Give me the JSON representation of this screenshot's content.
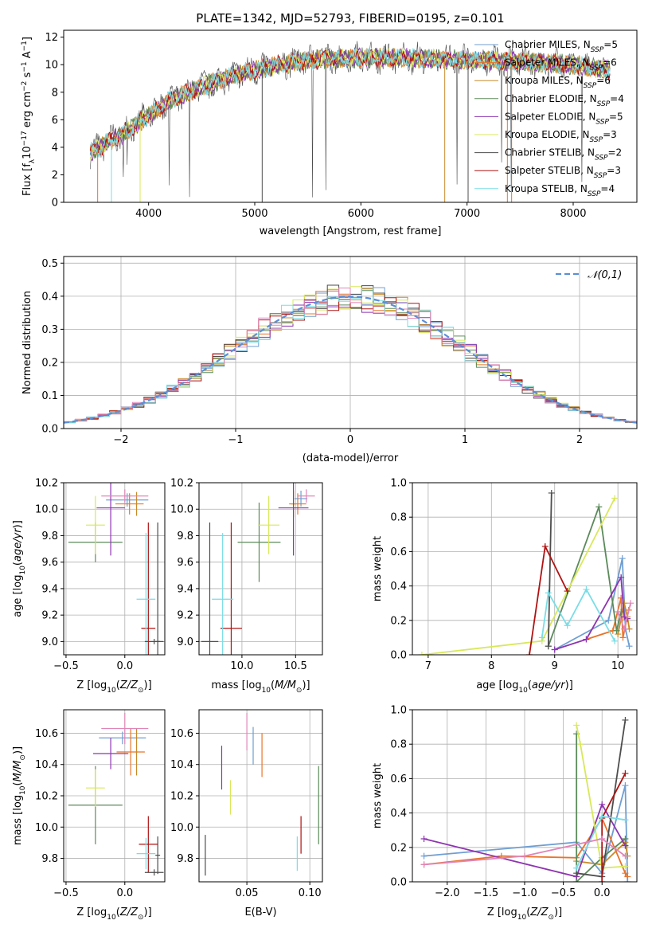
{
  "figure_title": "PLATE=1342, MJD=52793, FIBERID=0195, z=0.101",
  "series_colors": [
    "#6f9ed2",
    "#e8742a",
    "#c88a2a",
    "#5b8a5a",
    "#8e34b0",
    "#d8e85a",
    "#4d4d4d",
    "#b01212",
    "#79dde6",
    "#e085b8"
  ],
  "chart_data": [
    {
      "id": "spectrum",
      "type": "line",
      "xlabel": "wavelength [Angstrom, rest frame]",
      "ylabel": "Flux [fλ10⁻¹⁷ erg cm⁻² s⁻¹ A⁻¹]",
      "xlim": [
        3200,
        8600
      ],
      "ylim": [
        0,
        12.5
      ],
      "xticks": [
        4000,
        5000,
        6000,
        7000,
        8000
      ],
      "yticks": [
        0,
        2,
        4,
        6,
        8,
        10,
        12
      ],
      "grid": false,
      "legend": "top-right",
      "legend_entries": [
        "Chabrier MILES, N_SSP=5",
        "Salpeter MILES, N_SSP=6",
        "Kroupa MILES, N_SSP=6",
        "Chabrier ELODIE, N_SSP=4",
        "Salpeter ELODIE, N_SSP=5",
        "Kroupa ELODIE, N_SSP=3",
        "Chabrier STELIB, N_SSP=2",
        "Salpeter STELIB, N_SSP=3",
        "Kroupa STELIB, N_SSP=4"
      ],
      "continuum": {
        "x": [
          3450,
          3600,
          3800,
          4000,
          4200,
          4500,
          4800,
          5000,
          5300,
          5600,
          6000,
          6400,
          6800,
          7200,
          7600,
          8000,
          8350
        ],
        "y": [
          3.6,
          4.3,
          5.2,
          6.3,
          7.4,
          8.4,
          9.2,
          9.6,
          10.1,
          10.4,
          10.5,
          10.5,
          10.4,
          10.3,
          10.2,
          10.0,
          9.6
        ]
      }
    },
    {
      "id": "residuals",
      "type": "histogram",
      "xlabel": "(data-model)/error",
      "ylabel": "Normed distribution",
      "xlim": [
        -2.5,
        2.5
      ],
      "ylim": [
        0,
        0.52
      ],
      "xticks": [
        -2,
        -1,
        0,
        1,
        2
      ],
      "yticks": [
        0.0,
        0.1,
        0.2,
        0.3,
        0.4,
        0.5
      ],
      "grid": true,
      "legend": "top-right",
      "legend_entries": [
        "𝒩(0,1)"
      ],
      "bin_width": 0.1,
      "bin_start": -2.5
    },
    {
      "id": "age-vs-Z",
      "type": "errorbar",
      "xlabel": "Z [log10(Z/Z⊙)]",
      "ylabel": "age  [log10(age/yr)]",
      "xlim": [
        -0.52,
        0.34
      ],
      "ylim": [
        8.9,
        10.2
      ],
      "xticks": [
        -0.5,
        0.0
      ],
      "xticklabels": [
        "−0.5",
        "0.0"
      ],
      "yticks": [
        9.0,
        9.2,
        9.4,
        9.6,
        9.8,
        10.0,
        10.2
      ],
      "grid": true,
      "points": [
        {
          "x": 0.02,
          "y": 10.07,
          "xe": 0.18,
          "ye": 0.05,
          "c": 0
        },
        {
          "x": 0.04,
          "y": 10.04,
          "xe": 0.12,
          "ye": 0.08,
          "c": 1
        },
        {
          "x": 0.1,
          "y": 10.04,
          "xe": 0.01,
          "ye": 0.09,
          "c": 2
        },
        {
          "x": -0.25,
          "y": 9.75,
          "xe": 0.23,
          "ye": 0.15,
          "c": 3
        },
        {
          "x": -0.12,
          "y": 10.01,
          "xe": 0.12,
          "ye": 0.36,
          "c": 4
        },
        {
          "x": -0.25,
          "y": 9.88,
          "xe": 0.08,
          "ye": 0.22,
          "c": 5
        },
        {
          "x": 0.28,
          "y": 9.0,
          "xe": 0.02,
          "ye": 0.9,
          "c": 6
        },
        {
          "x": 0.2,
          "y": 9.1,
          "xe": 0.06,
          "ye": 0.8,
          "c": 7
        },
        {
          "x": 0.18,
          "y": 9.32,
          "xe": 0.08,
          "ye": 0.5,
          "c": 8
        },
        {
          "x": 0.0,
          "y": 10.1,
          "xe": 0.2,
          "ye": 0.05,
          "c": 9
        },
        {
          "x": 0.25,
          "y": 9.0,
          "xe": 0.08,
          "ye": 0.02,
          "c": 6
        }
      ]
    },
    {
      "id": "age-vs-mass",
      "type": "errorbar",
      "xlabel": "mass [log10(M/M⊙)]",
      "ylabel": "",
      "xlim": [
        9.6,
        10.75
      ],
      "ylim": [
        8.9,
        10.2
      ],
      "xticks": [
        10.0,
        10.5
      ],
      "yticks": [
        9.0,
        9.2,
        9.4,
        9.6,
        9.8,
        10.0,
        10.2
      ],
      "grid": true,
      "points": [
        {
          "x": 10.55,
          "y": 10.08,
          "xe": 0.06,
          "ye": 0.06,
          "c": 0
        },
        {
          "x": 10.52,
          "y": 10.04,
          "xe": 0.08,
          "ye": 0.08,
          "c": 1
        },
        {
          "x": 10.48,
          "y": 10.04,
          "xe": 0.02,
          "ye": 0.1,
          "c": 2
        },
        {
          "x": 10.16,
          "y": 9.75,
          "xe": 0.2,
          "ye": 0.3,
          "c": 3
        },
        {
          "x": 10.48,
          "y": 10.01,
          "xe": 0.14,
          "ye": 0.36,
          "c": 4
        },
        {
          "x": 10.25,
          "y": 9.88,
          "xe": 0.1,
          "ye": 0.22,
          "c": 5
        },
        {
          "x": 9.7,
          "y": 9.0,
          "xe": 0.08,
          "ye": 0.9,
          "c": 6
        },
        {
          "x": 9.9,
          "y": 9.1,
          "xe": 0.1,
          "ye": 0.8,
          "c": 7
        },
        {
          "x": 9.82,
          "y": 9.32,
          "xe": 0.1,
          "ye": 0.5,
          "c": 8
        },
        {
          "x": 10.6,
          "y": 10.1,
          "xe": 0.08,
          "ye": 0.05,
          "c": 9
        }
      ]
    },
    {
      "id": "weight-vs-age",
      "type": "line",
      "xlabel": "age  [log10(age/yr)]",
      "ylabel": "mass weight",
      "xlim": [
        6.75,
        10.3
      ],
      "ylim": [
        0,
        1.0
      ],
      "xticks": [
        7,
        8,
        9,
        10
      ],
      "yticks": [
        0.0,
        0.2,
        0.4,
        0.6,
        0.8,
        1.0
      ],
      "grid": true,
      "series": [
        {
          "c": 0,
          "x": [
            9.0,
            9.85,
            10.07,
            10.12,
            10.18
          ],
          "y": [
            0.03,
            0.2,
            0.56,
            0.15,
            0.05
          ]
        },
        {
          "c": 1,
          "x": [
            9.5,
            9.92,
            10.05,
            10.08,
            10.17
          ],
          "y": [
            0.09,
            0.14,
            0.33,
            0.1,
            0.26
          ]
        },
        {
          "c": 2,
          "x": [
            10.0,
            10.1,
            10.15,
            10.18
          ],
          "y": [
            0.12,
            0.3,
            0.22,
            0.15
          ]
        },
        {
          "c": 3,
          "x": [
            8.9,
            9.7,
            9.98,
            10.05
          ],
          "y": [
            0.05,
            0.86,
            0.14,
            0.25
          ]
        },
        {
          "c": 4,
          "x": [
            9.0,
            9.5,
            10.05,
            10.1,
            10.15
          ],
          "y": [
            0.03,
            0.09,
            0.45,
            0.22,
            0.21
          ]
        },
        {
          "c": 5,
          "x": [
            6.9,
            8.8,
            9.95
          ],
          "y": [
            0.0,
            0.08,
            0.91
          ]
        },
        {
          "c": 6,
          "x": [
            8.9,
            8.95
          ],
          "y": [
            0.05,
            0.94
          ]
        },
        {
          "c": 7,
          "x": [
            8.6,
            8.85,
            9.2
          ],
          "y": [
            0.0,
            0.63,
            0.37
          ]
        },
        {
          "c": 8,
          "x": [
            8.8,
            8.9,
            9.2,
            9.5,
            9.95
          ],
          "y": [
            0.1,
            0.36,
            0.17,
            0.38,
            0.08
          ]
        },
        {
          "c": 9,
          "x": [
            10.0,
            10.1,
            10.2
          ],
          "y": [
            0.25,
            0.15,
            0.3
          ]
        }
      ]
    },
    {
      "id": "mass-vs-Z",
      "type": "errorbar",
      "xlabel": "Z [log10(Z/Z⊙)]",
      "ylabel": "mass [log10(M/M⊙)]",
      "xlim": [
        -0.52,
        0.34
      ],
      "ylim": [
        9.65,
        10.75
      ],
      "xticks": [
        -0.5,
        0.0
      ],
      "xticklabels": [
        "−0.5",
        "0.0"
      ],
      "yticks": [
        9.8,
        10.0,
        10.2,
        10.4,
        10.6
      ],
      "grid": true,
      "points": [
        {
          "x": -0.02,
          "y": 10.57,
          "xe": 0.2,
          "ye": 0.04,
          "c": 0
        },
        {
          "x": 0.05,
          "y": 10.48,
          "xe": 0.12,
          "ye": 0.15,
          "c": 1
        },
        {
          "x": 0.1,
          "y": 10.48,
          "xe": 0.01,
          "ye": 0.15,
          "c": 2
        },
        {
          "x": -0.25,
          "y": 10.14,
          "xe": 0.23,
          "ye": 0.25,
          "c": 3
        },
        {
          "x": -0.12,
          "y": 10.47,
          "xe": 0.15,
          "ye": 0.1,
          "c": 4
        },
        {
          "x": -0.25,
          "y": 10.25,
          "xe": 0.08,
          "ye": 0.12,
          "c": 5
        },
        {
          "x": 0.28,
          "y": 9.82,
          "xe": 0.02,
          "ye": 0.12,
          "c": 6
        },
        {
          "x": 0.2,
          "y": 9.89,
          "xe": 0.08,
          "ye": 0.18,
          "c": 7
        },
        {
          "x": 0.18,
          "y": 9.83,
          "xe": 0.08,
          "ye": 0.1,
          "c": 8
        },
        {
          "x": 0.0,
          "y": 10.63,
          "xe": 0.2,
          "ye": 0.1,
          "c": 9
        },
        {
          "x": 0.25,
          "y": 9.71,
          "xe": 0.08,
          "ye": 0.02,
          "c": 6
        }
      ]
    },
    {
      "id": "mass-vs-EBV",
      "type": "errorbar",
      "xlabel": "E(B-V)",
      "ylabel": "",
      "xlim": [
        0.012,
        0.11
      ],
      "ylim": [
        9.65,
        10.75
      ],
      "xticks": [
        0.05,
        0.1
      ],
      "yticks": [
        9.8,
        10.0,
        10.2,
        10.4,
        10.6
      ],
      "grid": true,
      "points": [
        {
          "x": 0.055,
          "y": 10.52,
          "xe": 0,
          "ye": 0.12,
          "c": 0
        },
        {
          "x": 0.062,
          "y": 10.46,
          "xe": 0,
          "ye": 0.14,
          "c": 1
        },
        {
          "x": 0.03,
          "y": 10.38,
          "xe": 0,
          "ye": 0.14,
          "c": 4
        },
        {
          "x": 0.037,
          "y": 10.19,
          "xe": 0,
          "ye": 0.11,
          "c": 5
        },
        {
          "x": 0.107,
          "y": 10.14,
          "xe": 0,
          "ye": 0.25,
          "c": 3
        },
        {
          "x": 0.017,
          "y": 9.82,
          "xe": 0,
          "ye": 0.13,
          "c": 6
        },
        {
          "x": 0.093,
          "y": 9.95,
          "xe": 0,
          "ye": 0.12,
          "c": 7
        },
        {
          "x": 0.09,
          "y": 9.83,
          "xe": 0,
          "ye": 0.11,
          "c": 8
        },
        {
          "x": 0.05,
          "y": 10.61,
          "xe": 0,
          "ye": 0.12,
          "c": 9
        }
      ]
    },
    {
      "id": "weight-vs-Z",
      "type": "line",
      "xlabel": "Z [log10(Z/Z⊙)]",
      "ylabel": "mass weight",
      "xlim": [
        -2.45,
        0.45
      ],
      "ylim": [
        0,
        1.0
      ],
      "xticks": [
        -2.0,
        -1.5,
        -1.0,
        -0.5,
        0.0
      ],
      "yticks": [
        0.0,
        0.2,
        0.4,
        0.6,
        0.8,
        1.0
      ],
      "grid": true,
      "series": [
        {
          "c": 0,
          "x": [
            -2.3,
            -0.33,
            0.0,
            0.3,
            0.33
          ],
          "y": [
            0.15,
            0.23,
            0.05,
            0.56,
            0.0
          ]
        },
        {
          "c": 1,
          "x": [
            -2.3,
            -1.3,
            -0.33,
            0.0,
            0.3,
            0.33
          ],
          "y": [
            0.1,
            0.15,
            0.14,
            0.37,
            0.05,
            0.03
          ]
        },
        {
          "c": 2,
          "x": [
            -0.33,
            0.0,
            0.3,
            0.33
          ],
          "y": [
            0.12,
            0.1,
            0.23,
            0.15
          ]
        },
        {
          "c": 3,
          "x": [
            -0.33,
            -0.33,
            0.0,
            0.3
          ],
          "y": [
            0.86,
            0.0,
            0.14,
            0.25
          ]
        },
        {
          "c": 4,
          "x": [
            -2.3,
            -0.33,
            0.0,
            0.3
          ],
          "y": [
            0.25,
            0.03,
            0.45,
            0.21
          ]
        },
        {
          "c": 5,
          "x": [
            -0.33,
            -0.28,
            0.0,
            0.3
          ],
          "y": [
            0.91,
            0.8,
            0.08,
            0.09
          ]
        },
        {
          "c": 6,
          "x": [
            -0.33,
            0.0,
            0.3
          ],
          "y": [
            0.05,
            0.03,
            0.94
          ]
        },
        {
          "c": 7,
          "x": [
            0.0,
            0.0,
            0.3
          ],
          "y": [
            0.0,
            0.37,
            0.63
          ]
        },
        {
          "c": 8,
          "x": [
            -0.33,
            0.0,
            0.3
          ],
          "y": [
            0.08,
            0.38,
            0.36
          ]
        },
        {
          "c": 9,
          "x": [
            -2.3,
            -1.0,
            0.0,
            0.3
          ],
          "y": [
            0.1,
            0.15,
            0.25,
            0.15
          ]
        }
      ]
    }
  ]
}
